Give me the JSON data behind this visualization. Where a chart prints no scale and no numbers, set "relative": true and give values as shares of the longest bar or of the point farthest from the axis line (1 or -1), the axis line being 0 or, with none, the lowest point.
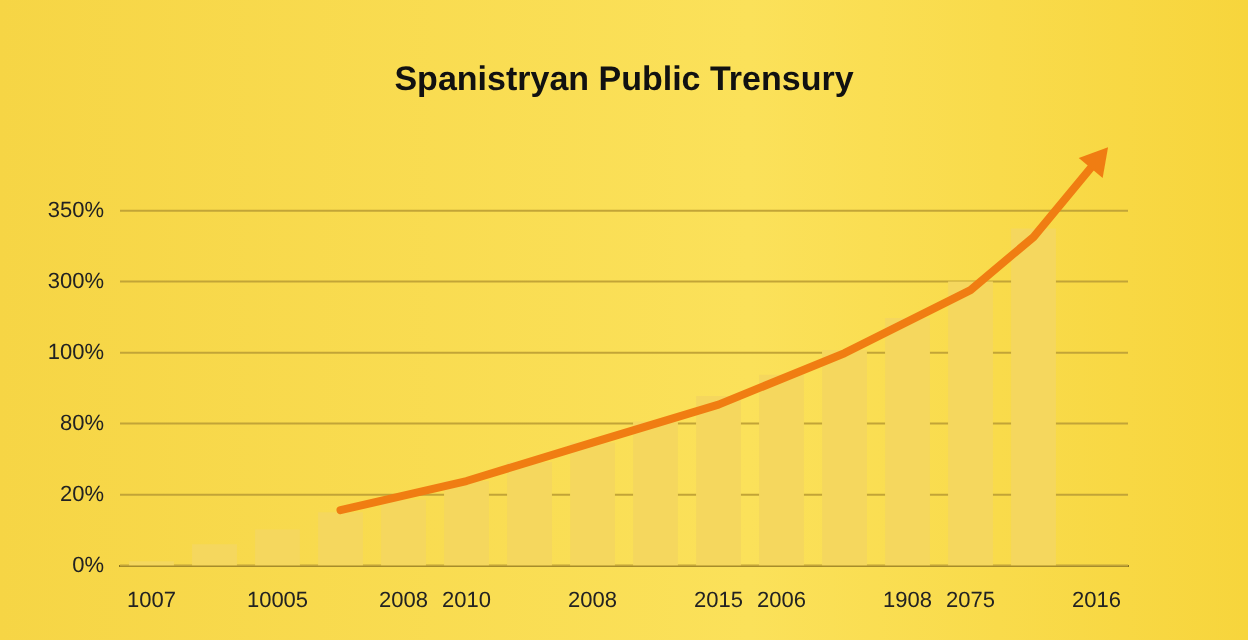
{
  "chart_data": {
    "type": "bar",
    "title": "Spanistryan Public Trensury",
    "relative": true,
    "categories": [
      "1007",
      null,
      "10005",
      null,
      "2008",
      "2010",
      null,
      "2008",
      null,
      "2015",
      "2006",
      null,
      "1908",
      "2075",
      null,
      "2016"
    ],
    "series": [
      {
        "color": "#f5d75e",
        "values": [
          0.011,
          0.053,
          0.089,
          0.132,
          0.163,
          0.209,
          0.256,
          0.304,
          0.356,
          0.419,
          0.472,
          0.533,
          0.612,
          0.702,
          0.833,
          null
        ]
      },
      {
        "type": "line",
        "color": "#f07d12",
        "values": [
          null,
          null,
          null,
          0.137,
          null,
          0.209,
          null,
          0.304,
          null,
          0.398,
          null,
          0.525,
          null,
          0.681,
          0.812,
          1
        ]
      }
    ],
    "ref_lines": [
      {
        "axis": "y",
        "value": 0,
        "color": "#c2a437"
      },
      {
        "axis": "y",
        "value": 0.175,
        "color": "#c2a437"
      },
      {
        "axis": "y",
        "value": 0.351,
        "color": "#c2a437"
      },
      {
        "axis": "y",
        "value": 0.526,
        "color": "#c2a437"
      },
      {
        "axis": "y",
        "value": 0.702,
        "color": "#c2a437"
      },
      {
        "axis": "y",
        "value": 0.877,
        "color": "#c2a437"
      }
    ],
    "annotations": [
      "0%",
      "20%",
      "80%",
      "100%",
      "300%",
      "350%"
    ],
    "legend": false,
    "marker": "none",
    "line_style": "solid"
  }
}
